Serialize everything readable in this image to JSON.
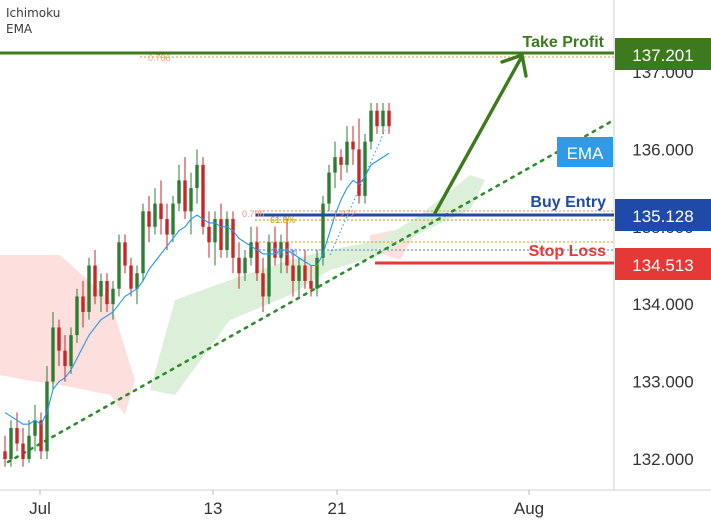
{
  "indicators": [
    "Ichimoku",
    "EMA"
  ],
  "colors": {
    "up_candle": "#2e7d32",
    "down_candle": "#c62828",
    "ema_line": "#2196f3",
    "cloud_bull": "#dcefd9",
    "cloud_bear": "#fde0de",
    "take_profit": "#3d7a1e",
    "buy_entry": "#1f4aa8",
    "stop_loss": "#e53935",
    "trendline": "#2e8b2e",
    "fib": "#f0a36a",
    "ema_badge": "#2f9be8"
  },
  "levels": {
    "take_profit": {
      "label": "Take Profit",
      "price": "137.201"
    },
    "buy_entry": {
      "label": "Buy Entry",
      "price": "135.128"
    },
    "stop_loss": {
      "label": "Stop Loss",
      "price": "134.513"
    }
  },
  "fib_labels": {
    "top": "0.786",
    "entry": "0.786",
    "entry_ext": "1.272",
    "retrace": "61.8%",
    "lower": "78.6%"
  },
  "ema_badge": "EMA",
  "chart_data": {
    "type": "candlestick",
    "instrument": "",
    "y_ticks": [
      "132.000",
      "133.000",
      "134.000",
      "135.000",
      "136.000",
      "137.000"
    ],
    "y_range": [
      131.75,
      137.6
    ],
    "x_ticks": [
      "Jul",
      "13",
      "21",
      "Aug"
    ],
    "candles": [
      {
        "o": 132.1,
        "h": 132.3,
        "l": 131.9,
        "c": 132.0
      },
      {
        "o": 132.0,
        "h": 132.5,
        "l": 131.9,
        "c": 132.4
      },
      {
        "o": 132.4,
        "h": 132.6,
        "l": 132.1,
        "c": 132.2
      },
      {
        "o": 132.2,
        "h": 132.4,
        "l": 131.9,
        "c": 132.0
      },
      {
        "o": 132.0,
        "h": 132.5,
        "l": 131.95,
        "c": 132.3
      },
      {
        "o": 132.3,
        "h": 132.7,
        "l": 132.1,
        "c": 132.5
      },
      {
        "o": 132.5,
        "h": 132.6,
        "l": 132.0,
        "c": 132.1
      },
      {
        "o": 132.1,
        "h": 133.2,
        "l": 132.0,
        "c": 133.0
      },
      {
        "o": 133.0,
        "h": 133.9,
        "l": 132.9,
        "c": 133.7
      },
      {
        "o": 133.7,
        "h": 133.8,
        "l": 133.2,
        "c": 133.4
      },
      {
        "o": 133.4,
        "h": 133.6,
        "l": 133.0,
        "c": 133.2
      },
      {
        "o": 133.2,
        "h": 133.7,
        "l": 133.1,
        "c": 133.6
      },
      {
        "o": 133.6,
        "h": 134.2,
        "l": 133.5,
        "c": 134.1
      },
      {
        "o": 134.1,
        "h": 134.3,
        "l": 133.7,
        "c": 133.9
      },
      {
        "o": 133.9,
        "h": 134.6,
        "l": 133.8,
        "c": 134.5
      },
      {
        "o": 134.5,
        "h": 134.7,
        "l": 134.0,
        "c": 134.1
      },
      {
        "o": 134.1,
        "h": 134.4,
        "l": 133.9,
        "c": 134.3
      },
      {
        "o": 134.3,
        "h": 134.4,
        "l": 133.9,
        "c": 134.0
      },
      {
        "o": 134.0,
        "h": 134.3,
        "l": 133.8,
        "c": 134.2
      },
      {
        "o": 134.2,
        "h": 134.9,
        "l": 134.1,
        "c": 134.8
      },
      {
        "o": 134.8,
        "h": 134.9,
        "l": 134.4,
        "c": 134.5
      },
      {
        "o": 134.5,
        "h": 134.6,
        "l": 134.1,
        "c": 134.2
      },
      {
        "o": 134.2,
        "h": 134.5,
        "l": 134.0,
        "c": 134.4
      },
      {
        "o": 134.4,
        "h": 135.3,
        "l": 134.3,
        "c": 135.2
      },
      {
        "o": 135.2,
        "h": 135.4,
        "l": 134.8,
        "c": 135.0
      },
      {
        "o": 135.0,
        "h": 135.5,
        "l": 134.9,
        "c": 135.3
      },
      {
        "o": 135.3,
        "h": 135.6,
        "l": 134.9,
        "c": 135.1
      },
      {
        "o": 135.1,
        "h": 135.3,
        "l": 134.7,
        "c": 134.9
      },
      {
        "o": 134.9,
        "h": 135.4,
        "l": 134.8,
        "c": 135.3
      },
      {
        "o": 135.3,
        "h": 135.8,
        "l": 135.2,
        "c": 135.6
      },
      {
        "o": 135.6,
        "h": 135.9,
        "l": 135.1,
        "c": 135.2
      },
      {
        "o": 135.2,
        "h": 135.7,
        "l": 134.9,
        "c": 135.5
      },
      {
        "o": 135.5,
        "h": 136.0,
        "l": 135.3,
        "c": 135.8
      },
      {
        "o": 135.8,
        "h": 135.9,
        "l": 134.9,
        "c": 135.0
      },
      {
        "o": 135.0,
        "h": 135.2,
        "l": 134.6,
        "c": 134.8
      },
      {
        "o": 134.8,
        "h": 135.2,
        "l": 134.5,
        "c": 135.1
      },
      {
        "o": 135.1,
        "h": 135.3,
        "l": 134.6,
        "c": 134.7
      },
      {
        "o": 134.7,
        "h": 135.2,
        "l": 134.6,
        "c": 135.1
      },
      {
        "o": 135.1,
        "h": 135.2,
        "l": 134.4,
        "c": 134.6
      },
      {
        "o": 134.6,
        "h": 134.8,
        "l": 134.2,
        "c": 134.4
      },
      {
        "o": 134.4,
        "h": 134.7,
        "l": 134.3,
        "c": 134.6
      },
      {
        "o": 134.6,
        "h": 135.0,
        "l": 134.5,
        "c": 134.8
      },
      {
        "o": 134.8,
        "h": 135.0,
        "l": 134.3,
        "c": 134.4
      },
      {
        "o": 134.4,
        "h": 134.6,
        "l": 133.9,
        "c": 134.1
      },
      {
        "o": 134.1,
        "h": 134.9,
        "l": 134.0,
        "c": 134.8
      },
      {
        "o": 134.8,
        "h": 135.0,
        "l": 134.5,
        "c": 134.6
      },
      {
        "o": 134.6,
        "h": 134.9,
        "l": 134.4,
        "c": 134.8
      },
      {
        "o": 134.8,
        "h": 135.1,
        "l": 134.4,
        "c": 134.5
      },
      {
        "o": 134.5,
        "h": 134.7,
        "l": 134.1,
        "c": 134.3
      },
      {
        "o": 134.3,
        "h": 134.6,
        "l": 134.1,
        "c": 134.5
      },
      {
        "o": 134.5,
        "h": 134.7,
        "l": 134.2,
        "c": 134.3
      },
      {
        "o": 134.3,
        "h": 134.5,
        "l": 134.1,
        "c": 134.2
      },
      {
        "o": 134.2,
        "h": 134.7,
        "l": 134.1,
        "c": 134.6
      },
      {
        "o": 134.6,
        "h": 135.4,
        "l": 134.5,
        "c": 135.3
      },
      {
        "o": 135.3,
        "h": 135.8,
        "l": 135.2,
        "c": 135.7
      },
      {
        "o": 135.7,
        "h": 136.1,
        "l": 135.5,
        "c": 135.9
      },
      {
        "o": 135.9,
        "h": 136.0,
        "l": 135.6,
        "c": 135.8
      },
      {
        "o": 135.8,
        "h": 136.3,
        "l": 135.7,
        "c": 136.1
      },
      {
        "o": 136.1,
        "h": 136.3,
        "l": 135.8,
        "c": 136.0
      },
      {
        "o": 136.0,
        "h": 136.4,
        "l": 135.3,
        "c": 135.4
      },
      {
        "o": 135.4,
        "h": 136.2,
        "l": 135.3,
        "c": 136.1
      },
      {
        "o": 136.1,
        "h": 136.6,
        "l": 136.0,
        "c": 136.5
      },
      {
        "o": 136.5,
        "h": 136.6,
        "l": 136.2,
        "c": 136.3
      },
      {
        "o": 136.3,
        "h": 136.6,
        "l": 136.2,
        "c": 136.5
      },
      {
        "o": 136.5,
        "h": 136.6,
        "l": 136.2,
        "c": 136.3
      }
    ],
    "ema": [
      132.6,
      132.55,
      132.5,
      132.45,
      132.45,
      132.5,
      132.45,
      132.6,
      132.9,
      133.0,
      133.05,
      133.15,
      133.3,
      133.45,
      133.6,
      133.7,
      133.8,
      133.85,
      133.9,
      134.0,
      134.1,
      134.15,
      134.2,
      134.3,
      134.45,
      134.55,
      134.65,
      134.75,
      134.85,
      134.95,
      135.0,
      135.1,
      135.15,
      135.1,
      135.05,
      135.05,
      135.0,
      135.0,
      134.95,
      134.85,
      134.8,
      134.75,
      134.7,
      134.65,
      134.65,
      134.65,
      134.7,
      134.7,
      134.65,
      134.6,
      134.55,
      134.5,
      134.5,
      134.65,
      134.9,
      135.15,
      135.35,
      135.5,
      135.6,
      135.55,
      135.65,
      135.8,
      135.85,
      135.9,
      135.95
    ]
  }
}
